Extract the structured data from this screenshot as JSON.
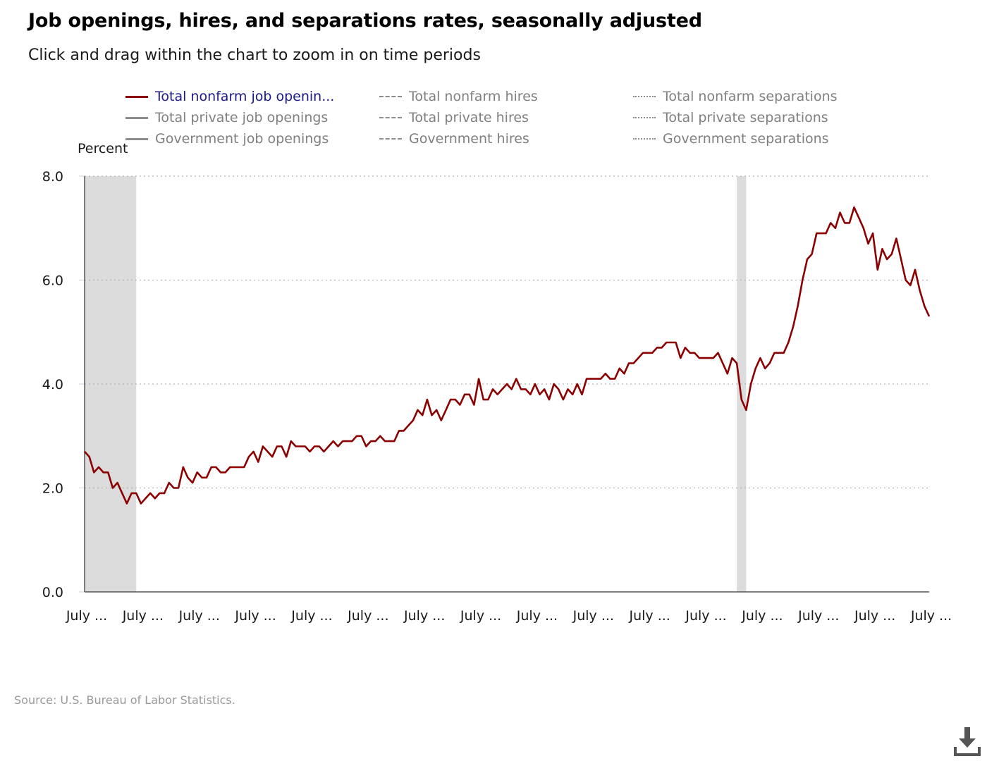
{
  "header": {
    "title": "Job openings, hires, and separations rates, seasonally adjusted",
    "subtitle": "Click and drag within the chart to zoom in on time periods"
  },
  "legend": [
    {
      "label": "Total nonfarm job openin...",
      "style": "solid",
      "color": "#8b0000",
      "active": true
    },
    {
      "label": "Total private job openings",
      "style": "solid",
      "color": "#8c8c8c",
      "active": false
    },
    {
      "label": "Government job openings",
      "style": "solid",
      "color": "#8c8c8c",
      "active": false
    },
    {
      "label": "Total nonfarm hires",
      "style": "dashed",
      "color": "#8c8c8c",
      "active": false
    },
    {
      "label": "Total private hires",
      "style": "dashed",
      "color": "#8c8c8c",
      "active": false
    },
    {
      "label": "Government hires",
      "style": "dashed",
      "color": "#8c8c8c",
      "active": false
    },
    {
      "label": "Total nonfarm separations",
      "style": "dotted",
      "color": "#8c8c8c",
      "active": false
    },
    {
      "label": "Total private separations",
      "style": "dotted",
      "color": "#8c8c8c",
      "active": false
    },
    {
      "label": "Government separations",
      "style": "dotted",
      "color": "#8c8c8c",
      "active": false
    }
  ],
  "footer": {
    "source": "Source: U.S. Bureau of Labor Statistics."
  },
  "icons": {
    "download": "download-icon"
  },
  "chart_data": {
    "type": "line",
    "title": "Job openings, hires, and separations rates, seasonally adjusted",
    "ylabel": "Percent",
    "xlabel": "",
    "ylim": [
      0,
      8
    ],
    "y_ticks": [
      "0.0",
      "2.0",
      "4.0",
      "6.0",
      "8.0"
    ],
    "y_tick_values": [
      0,
      2,
      4,
      6,
      8
    ],
    "grid": "horizontal dotted",
    "x_tick_labels": [
      "July ...",
      "July ...",
      "July ...",
      "July ...",
      "July ...",
      "July ...",
      "July ...",
      "July ...",
      "July ...",
      "July ...",
      "July ...",
      "July ...",
      "July ...",
      "July ...",
      "July ...",
      "July ..."
    ],
    "x_tick_months": [
      0,
      12,
      24,
      36,
      48,
      60,
      72,
      84,
      96,
      108,
      120,
      132,
      144,
      156,
      168,
      180
    ],
    "x_range_months": [
      0,
      180
    ],
    "recessions_months": [
      [
        0,
        11
      ],
      [
        139,
        141
      ]
    ],
    "series": [
      {
        "name": "Total nonfarm job openin...",
        "color": "#8b0000",
        "values": [
          [
            0,
            2.7
          ],
          [
            1,
            2.6
          ],
          [
            2,
            2.3
          ],
          [
            3,
            2.4
          ],
          [
            4,
            2.3
          ],
          [
            5,
            2.3
          ],
          [
            6,
            2.0
          ],
          [
            7,
            2.1
          ],
          [
            8,
            1.9
          ],
          [
            9,
            1.7
          ],
          [
            10,
            1.9
          ],
          [
            11,
            1.9
          ],
          [
            12,
            1.7
          ],
          [
            13,
            1.8
          ],
          [
            14,
            1.9
          ],
          [
            15,
            1.8
          ],
          [
            16,
            1.9
          ],
          [
            17,
            1.9
          ],
          [
            18,
            2.1
          ],
          [
            19,
            2.0
          ],
          [
            20,
            2.0
          ],
          [
            21,
            2.4
          ],
          [
            22,
            2.2
          ],
          [
            23,
            2.1
          ],
          [
            24,
            2.3
          ],
          [
            25,
            2.2
          ],
          [
            26,
            2.2
          ],
          [
            27,
            2.4
          ],
          [
            28,
            2.4
          ],
          [
            29,
            2.3
          ],
          [
            30,
            2.3
          ],
          [
            31,
            2.4
          ],
          [
            32,
            2.4
          ],
          [
            33,
            2.4
          ],
          [
            34,
            2.4
          ],
          [
            35,
            2.6
          ],
          [
            36,
            2.7
          ],
          [
            37,
            2.5
          ],
          [
            38,
            2.8
          ],
          [
            39,
            2.7
          ],
          [
            40,
            2.6
          ],
          [
            41,
            2.8
          ],
          [
            42,
            2.8
          ],
          [
            43,
            2.6
          ],
          [
            44,
            2.9
          ],
          [
            45,
            2.8
          ],
          [
            46,
            2.8
          ],
          [
            47,
            2.8
          ],
          [
            48,
            2.7
          ],
          [
            49,
            2.8
          ],
          [
            50,
            2.8
          ],
          [
            51,
            2.7
          ],
          [
            52,
            2.8
          ],
          [
            53,
            2.9
          ],
          [
            54,
            2.8
          ],
          [
            55,
            2.9
          ],
          [
            56,
            2.9
          ],
          [
            57,
            2.9
          ],
          [
            58,
            3.0
          ],
          [
            59,
            3.0
          ],
          [
            60,
            2.8
          ],
          [
            61,
            2.9
          ],
          [
            62,
            2.9
          ],
          [
            63,
            3.0
          ],
          [
            64,
            2.9
          ],
          [
            65,
            2.9
          ],
          [
            66,
            2.9
          ],
          [
            67,
            3.1
          ],
          [
            68,
            3.1
          ],
          [
            69,
            3.2
          ],
          [
            70,
            3.3
          ],
          [
            71,
            3.5
          ],
          [
            72,
            3.4
          ],
          [
            73,
            3.7
          ],
          [
            74,
            3.4
          ],
          [
            75,
            3.5
          ],
          [
            76,
            3.3
          ],
          [
            77,
            3.5
          ],
          [
            78,
            3.7
          ],
          [
            79,
            3.7
          ],
          [
            80,
            3.6
          ],
          [
            81,
            3.8
          ],
          [
            82,
            3.8
          ],
          [
            83,
            3.6
          ],
          [
            84,
            4.1
          ],
          [
            85,
            3.7
          ],
          [
            86,
            3.7
          ],
          [
            87,
            3.9
          ],
          [
            88,
            3.8
          ],
          [
            89,
            3.9
          ],
          [
            90,
            4.0
          ],
          [
            91,
            3.9
          ],
          [
            92,
            4.1
          ],
          [
            93,
            3.9
          ],
          [
            94,
            3.9
          ],
          [
            95,
            3.8
          ],
          [
            96,
            4.0
          ],
          [
            97,
            3.8
          ],
          [
            98,
            3.9
          ],
          [
            99,
            3.7
          ],
          [
            100,
            4.0
          ],
          [
            101,
            3.9
          ],
          [
            102,
            3.7
          ],
          [
            103,
            3.9
          ],
          [
            104,
            3.8
          ],
          [
            105,
            4.0
          ],
          [
            106,
            3.8
          ],
          [
            107,
            4.1
          ],
          [
            108,
            4.1
          ],
          [
            109,
            4.1
          ],
          [
            110,
            4.1
          ],
          [
            111,
            4.2
          ],
          [
            112,
            4.1
          ],
          [
            113,
            4.1
          ],
          [
            114,
            4.3
          ],
          [
            115,
            4.2
          ],
          [
            116,
            4.4
          ],
          [
            117,
            4.4
          ],
          [
            118,
            4.5
          ],
          [
            119,
            4.6
          ],
          [
            120,
            4.6
          ],
          [
            121,
            4.6
          ],
          [
            122,
            4.7
          ],
          [
            123,
            4.7
          ],
          [
            124,
            4.8
          ],
          [
            125,
            4.8
          ],
          [
            126,
            4.8
          ],
          [
            127,
            4.5
          ],
          [
            128,
            4.7
          ],
          [
            129,
            4.6
          ],
          [
            130,
            4.6
          ],
          [
            131,
            4.5
          ],
          [
            132,
            4.5
          ],
          [
            133,
            4.5
          ],
          [
            134,
            4.5
          ],
          [
            135,
            4.6
          ],
          [
            136,
            4.4
          ],
          [
            137,
            4.2
          ],
          [
            138,
            4.5
          ],
          [
            139,
            4.4
          ],
          [
            140,
            3.7
          ],
          [
            141,
            3.5
          ],
          [
            142,
            4.0
          ],
          [
            143,
            4.3
          ],
          [
            144,
            4.5
          ],
          [
            145,
            4.3
          ],
          [
            146,
            4.4
          ],
          [
            147,
            4.6
          ],
          [
            148,
            4.6
          ],
          [
            149,
            4.6
          ],
          [
            150,
            4.8
          ],
          [
            151,
            5.1
          ],
          [
            152,
            5.5
          ],
          [
            153,
            6.0
          ],
          [
            154,
            6.4
          ],
          [
            155,
            6.5
          ],
          [
            156,
            6.9
          ],
          [
            157,
            6.9
          ],
          [
            158,
            6.9
          ],
          [
            159,
            7.1
          ],
          [
            160,
            7.0
          ],
          [
            161,
            7.3
          ],
          [
            162,
            7.1
          ],
          [
            163,
            7.1
          ],
          [
            164,
            7.4
          ],
          [
            165,
            7.2
          ],
          [
            166,
            7.0
          ],
          [
            167,
            6.7
          ],
          [
            168,
            6.9
          ],
          [
            169,
            6.2
          ],
          [
            170,
            6.6
          ],
          [
            171,
            6.4
          ],
          [
            172,
            6.5
          ],
          [
            173,
            6.8
          ],
          [
            174,
            6.4
          ],
          [
            175,
            6.0
          ],
          [
            176,
            5.9
          ],
          [
            177,
            6.2
          ],
          [
            178,
            5.8
          ],
          [
            179,
            5.5
          ],
          [
            180,
            5.3
          ]
        ]
      }
    ]
  }
}
